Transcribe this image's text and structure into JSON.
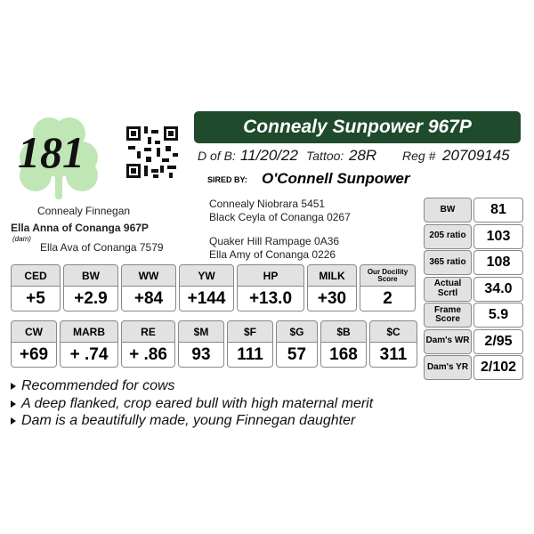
{
  "lot_number": "181",
  "name": "Connealy Sunpower 967P",
  "birth": {
    "label": "D of B:",
    "value": "11/20/22"
  },
  "tattoo": {
    "label": "Tattoo:",
    "value": "28R"
  },
  "registration": {
    "label": "Reg #",
    "value": "20709145"
  },
  "sire": {
    "label": "SIRED BY:",
    "value": "O'Connell Sunpower"
  },
  "pedigree": {
    "dam_sire": "Connealy Finnegan",
    "dam": "Ella Anna of Conanga 967P",
    "dam_tag": "(dam)",
    "dam_dam": "Ella Ava of Conanga 7579",
    "sire_sire": "Connealy Niobrara 5451",
    "sire_dam": "Black Ceyla of Conanga 0267",
    "sire_dam_sire": "Quaker Hill Rampage 0A36",
    "sire_dam_dam": "Ella Amy of Conanga 0226"
  },
  "epd_tables": [
    {
      "headers": [
        "CED",
        "BW",
        "WW",
        "YW",
        "HP",
        "MILK",
        "Our Docility Score"
      ],
      "values": [
        "+5",
        "+2.9",
        "+84",
        "+144",
        "+13.0",
        "+30",
        "2"
      ]
    },
    {
      "headers": [
        "CW",
        "MARB",
        "RE",
        "$M",
        "$F",
        "$G",
        "$B",
        "$C"
      ],
      "values": [
        "+69",
        "+ .74",
        "+ .86",
        "93",
        "111",
        "57",
        "168",
        "311"
      ]
    }
  ],
  "stats": [
    {
      "label": "BW",
      "value": "81"
    },
    {
      "label": "205 ratio",
      "value": "103"
    },
    {
      "label": "365 ratio",
      "value": "108"
    },
    {
      "label": "Actual Scrtl",
      "value": "34.0"
    },
    {
      "label": "Frame Score",
      "value": "5.9"
    },
    {
      "label": "Dam's WR",
      "value": "2/95"
    },
    {
      "label": "Dam's YR",
      "value": "2/102"
    }
  ],
  "notes": [
    "Recommended for cows",
    "A deep flanked, crop eared bull with high maternal merit",
    "Dam is a beautifully made, young Finnegan daughter"
  ]
}
